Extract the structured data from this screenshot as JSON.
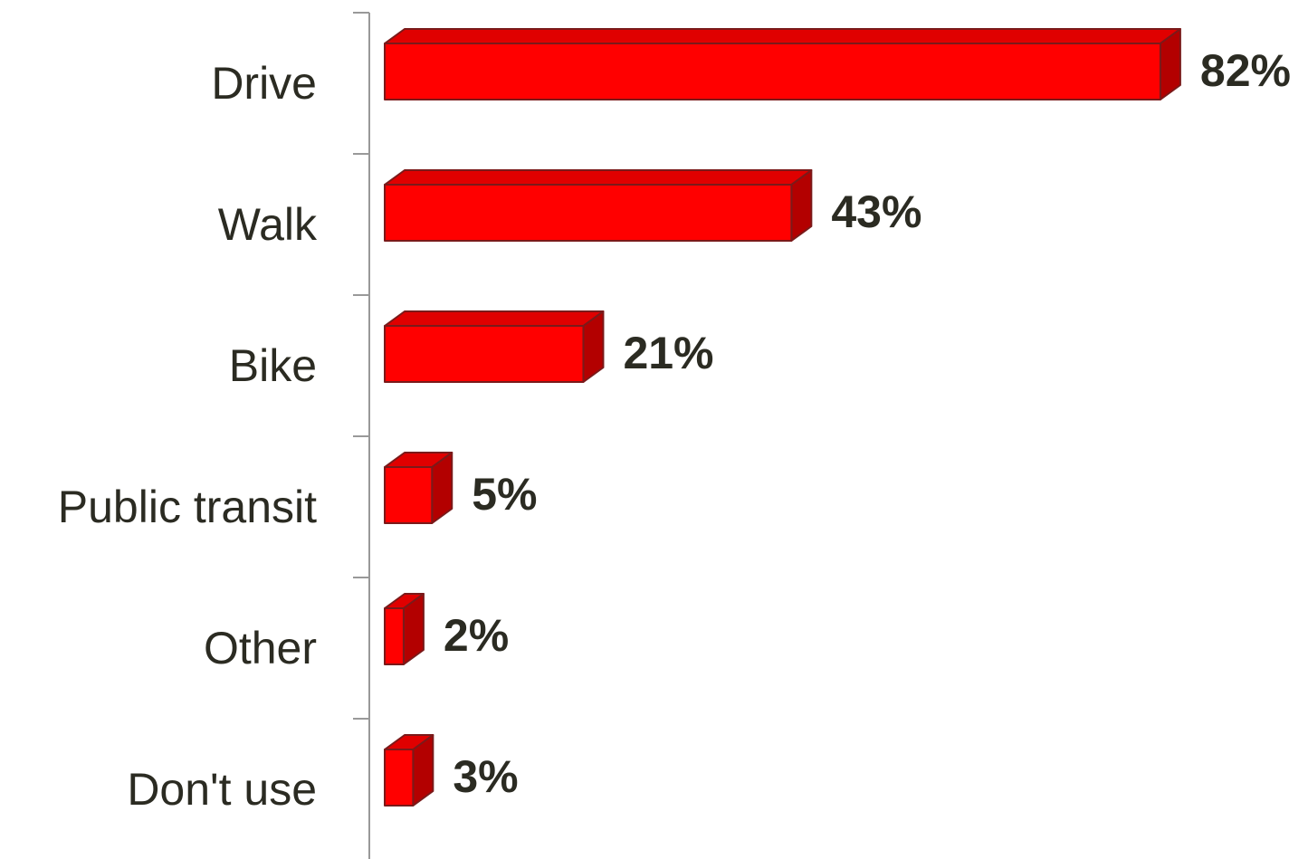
{
  "chart_data": {
    "type": "bar3d_horizontal",
    "categories": [
      "Drive",
      "Walk",
      "Bike",
      "Public transit",
      "Other",
      "Don't use"
    ],
    "values": [
      82,
      43,
      21,
      5,
      2,
      3
    ],
    "value_labels": [
      "82%",
      "43%",
      "21%",
      "5%",
      "2%",
      "3%"
    ],
    "color": "#ff0000"
  }
}
